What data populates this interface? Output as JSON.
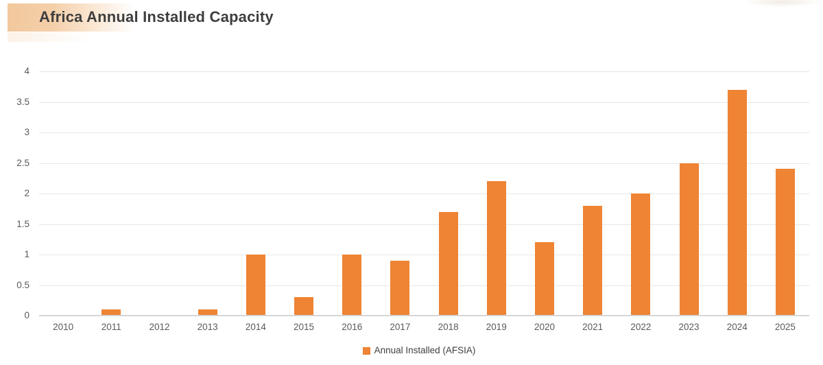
{
  "header": {
    "title": "Africa Annual Installed Capacity",
    "title_color": "#3e3e3e",
    "accent_color": "#f2c89d"
  },
  "chart_data": {
    "type": "bar",
    "title": "Africa Annual Installed Capacity",
    "categories": [
      "2010",
      "2011",
      "2012",
      "2013",
      "2014",
      "2015",
      "2016",
      "2017",
      "2018",
      "2019",
      "2020",
      "2021",
      "2022",
      "2023",
      "2024",
      "2025"
    ],
    "values": [
      0,
      0.1,
      0,
      0.1,
      1.0,
      0.3,
      1.0,
      0.9,
      1.7,
      2.2,
      1.2,
      1.8,
      2.0,
      2.5,
      3.7,
      2.4
    ],
    "series_name": "Annual Installed (AFSIA)",
    "xlabel": "",
    "ylabel": "",
    "ylim": [
      0,
      4
    ],
    "yticks": [
      0,
      0.5,
      1,
      1.5,
      2,
      2.5,
      3,
      3.5,
      4
    ],
    "grid": true,
    "legend_position": "bottom",
    "bar_color": "#ee8434",
    "gridline_color": "#e6e6e6",
    "axis_line_color": "#d6d6d6",
    "tick_label_color": "#595959"
  }
}
